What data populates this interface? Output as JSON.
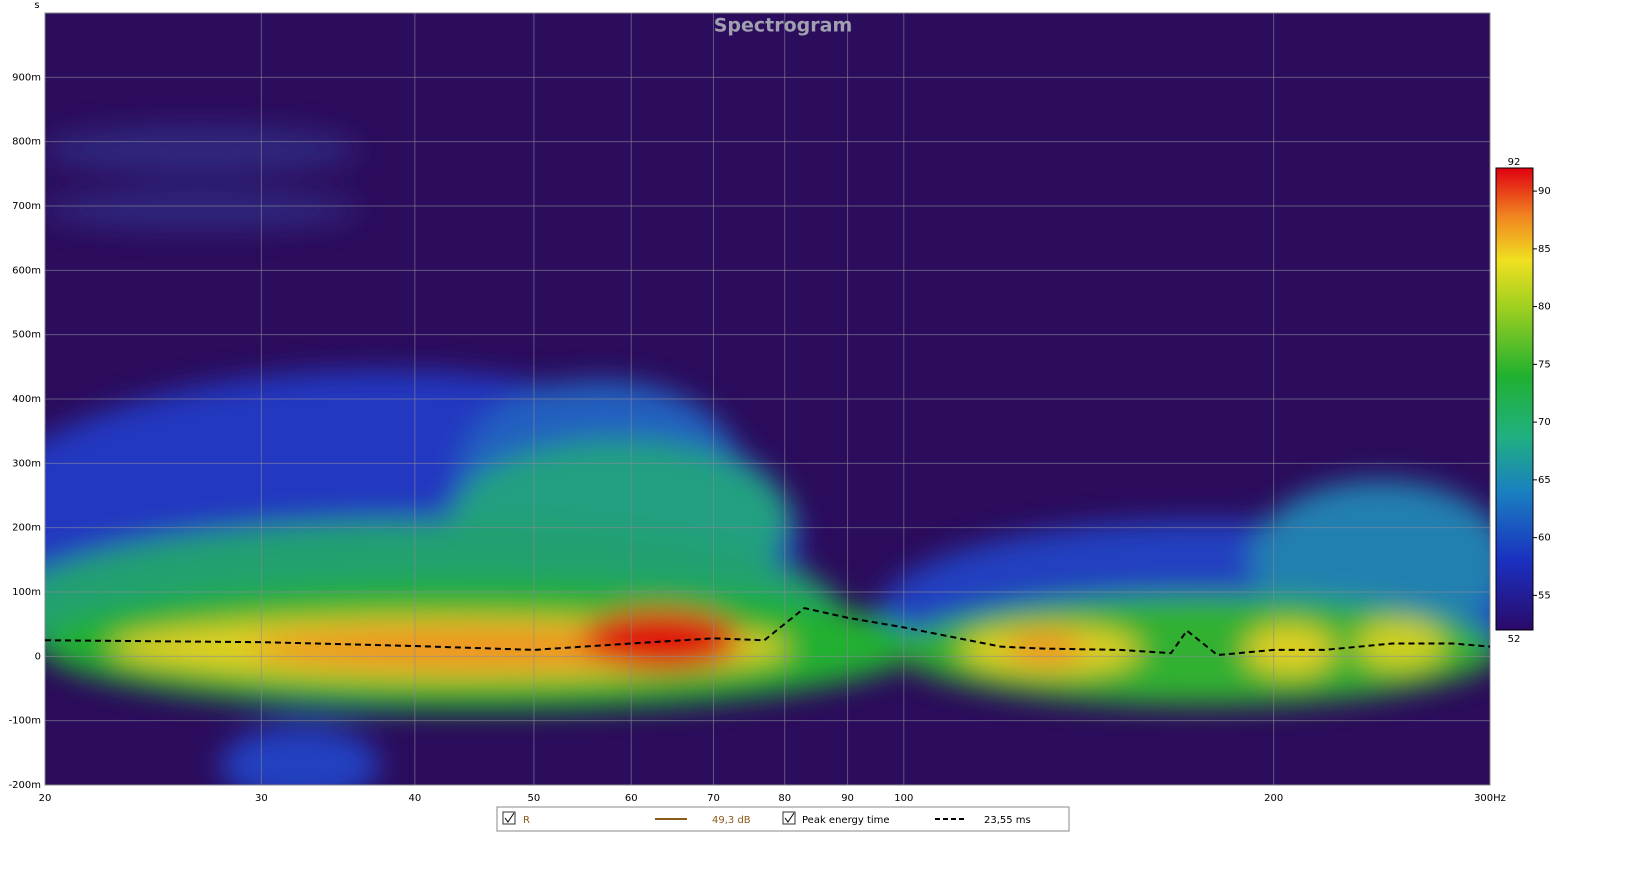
{
  "chart_data": {
    "type": "spectrogram",
    "title": "Spectrogram",
    "y_label": "s",
    "x_scale": "log",
    "xlim": [
      20,
      300
    ],
    "xticks": [
      20,
      30,
      40,
      50,
      60,
      70,
      80,
      90,
      100,
      200,
      {
        "value": 300,
        "label": "300Hz"
      }
    ],
    "ylim": [
      -0.2,
      1.0
    ],
    "yticks": [
      {
        "value": -0.2,
        "label": "-200m"
      },
      {
        "value": -0.1,
        "label": "-100m"
      },
      0,
      {
        "value": 0.1,
        "label": "100m"
      },
      {
        "value": 0.2,
        "label": "200m"
      },
      {
        "value": 0.3,
        "label": "300m"
      },
      {
        "value": 0.4,
        "label": "400m"
      },
      {
        "value": 0.5,
        "label": "500m"
      },
      {
        "value": 0.6,
        "label": "600m"
      },
      {
        "value": 0.7,
        "label": "700m"
      },
      {
        "value": 0.8,
        "label": "800m"
      },
      {
        "value": 0.9,
        "label": "900m"
      }
    ],
    "grid": true,
    "zlim": [
      52,
      92
    ],
    "zticks": [
      55,
      60,
      65,
      70,
      75,
      80,
      85,
      90
    ],
    "series": [
      {
        "name": "Peak energy time",
        "color": "#000000",
        "x": [
          20,
          30,
          40,
          50,
          60,
          70,
          77,
          83,
          90,
          100,
          120,
          130,
          150,
          165,
          170,
          180,
          200,
          220,
          250,
          280,
          300
        ],
        "values": [
          0.025,
          0.022,
          0.016,
          0.01,
          0.02,
          0.028,
          0.025,
          0.075,
          0.06,
          0.045,
          0.015,
          0.012,
          0.01,
          0.005,
          0.04,
          0.002,
          0.01,
          0.01,
          0.02,
          0.02,
          0.015
        ]
      }
    ],
    "legend": [
      {
        "name": "R",
        "value": "49,3 dB",
        "color": "#8b5a1a"
      },
      {
        "name": "Peak energy time",
        "value": "23,55 ms"
      }
    ]
  }
}
